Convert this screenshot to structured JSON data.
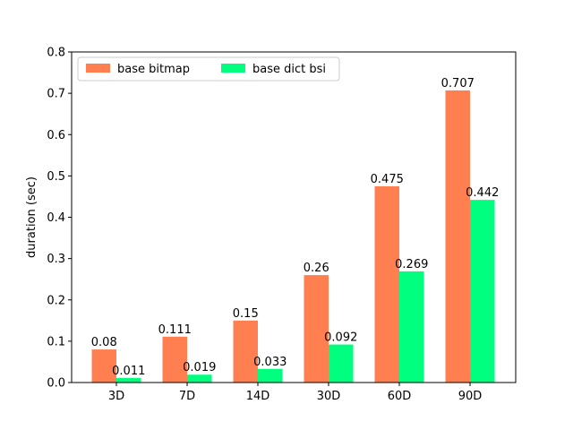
{
  "chart_data": {
    "type": "bar",
    "title": "",
    "xlabel": "",
    "ylabel": "duration (sec)",
    "categories": [
      "3D",
      "7D",
      "14D",
      "30D",
      "60D",
      "90D"
    ],
    "series": [
      {
        "name": "base bitmap",
        "color": "#FF7F50",
        "values": [
          0.08,
          0.111,
          0.15,
          0.26,
          0.475,
          0.707
        ],
        "labels": [
          "0.08",
          "0.111",
          "0.15",
          "0.26",
          "0.475",
          "0.707"
        ]
      },
      {
        "name": "base dict bsi",
        "color": "#00FF7F",
        "values": [
          0.011,
          0.019,
          0.033,
          0.092,
          0.269,
          0.442
        ],
        "labels": [
          "0.011",
          "0.019",
          "0.033",
          "0.092",
          "0.269",
          "0.442"
        ]
      }
    ],
    "ylim": [
      0,
      0.8
    ],
    "yticks": [
      "0.0",
      "0.1",
      "0.2",
      "0.3",
      "0.4",
      "0.5",
      "0.6",
      "0.7",
      "0.8"
    ],
    "grid": false,
    "legend_position": "top-left"
  }
}
